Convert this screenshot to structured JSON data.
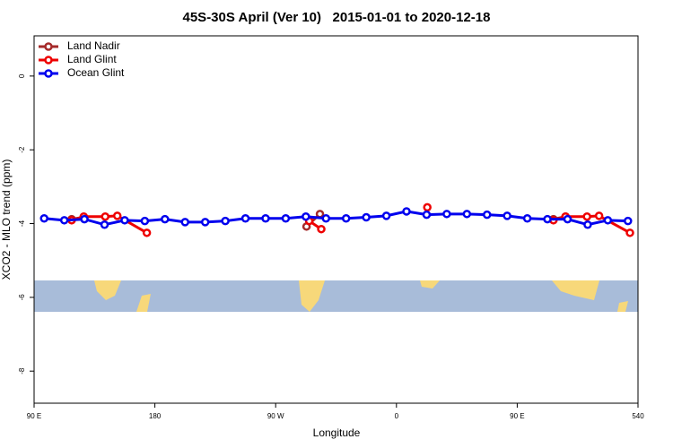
{
  "chart_data": {
    "type": "line",
    "title": "45S-30S April (Ver 10)   2015-01-01 to 2020-12-18",
    "xlabel": "Longitude",
    "ylabel": "XCO2 - MLO trend (ppm)",
    "xlim": [
      90,
      540
    ],
    "xticks": [
      {
        "value": 90,
        "label": "90 E"
      },
      180,
      {
        "value": 270,
        "label": "90 W"
      },
      {
        "value": 360,
        "label": "0"
      },
      {
        "value": 450,
        "label": "90 E"
      },
      540
    ],
    "ylim": [
      -8.87,
      1.09
    ],
    "yticks": [
      0,
      -2,
      -4,
      -6,
      -8
    ],
    "legend": "top-left",
    "series": [
      {
        "name": "Land Nadir",
        "color": "#a52a2a",
        "x": [
          118,
          127,
          null,
          293,
          303,
          null,
          477,
          486
        ],
        "values": [
          -3.88,
          -3.83,
          null,
          -4.08,
          -3.74,
          null,
          -3.88,
          -3.81
        ]
      },
      {
        "name": "Land Glint",
        "color": "#ee0000",
        "x": [
          118,
          127,
          143,
          152,
          174,
          null,
          295,
          304,
          null,
          383,
          null,
          477,
          486,
          502,
          511,
          534
        ],
        "values": [
          -3.91,
          -3.81,
          -3.81,
          -3.79,
          -4.25,
          null,
          -3.93,
          -4.15,
          null,
          -3.56,
          null,
          -3.91,
          -3.81,
          -3.81,
          -3.79,
          -4.25
        ]
      },
      {
        "name": "Ocean Glint",
        "color": "#0000ee",
        "x": [
          97.5,
          112.5,
          127.5,
          142.5,
          157.5,
          172.5,
          187.5,
          202.5,
          217.5,
          232.5,
          247.5,
          262.5,
          277.5,
          292.5,
          307.5,
          322.5,
          337.5,
          352.5,
          367.5,
          382.5,
          397.5,
          412.5,
          427.5,
          442.5,
          457.5,
          472.5,
          487.5,
          502.5,
          517.5,
          532.5
        ],
        "values": [
          -3.86,
          -3.91,
          -3.88,
          -4.03,
          -3.91,
          -3.93,
          -3.88,
          -3.96,
          -3.96,
          -3.93,
          -3.86,
          -3.86,
          -3.86,
          -3.81,
          -3.86,
          -3.86,
          -3.83,
          -3.79,
          -3.67,
          -3.76,
          -3.74,
          -3.74,
          -3.76,
          -3.79,
          -3.86,
          -3.88,
          -3.88,
          -4.03,
          -3.91,
          -3.93
        ]
      }
    ]
  }
}
